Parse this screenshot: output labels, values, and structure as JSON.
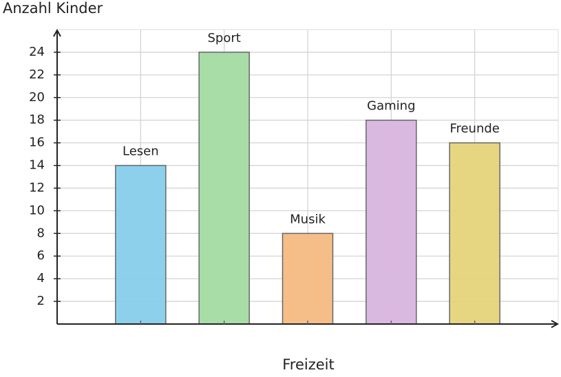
{
  "chart_data": {
    "type": "bar",
    "y_label": "Anzahl Kinder",
    "x_label": "Freizeit",
    "categories": [
      "Lesen",
      "Sport",
      "Musik",
      "Gaming",
      "Freunde"
    ],
    "values": [
      14,
      24,
      8,
      18,
      16
    ],
    "colors": [
      "#87ceeb",
      "#a3dba3",
      "#f4bb82",
      "#d8b5df",
      "#e5d47a"
    ],
    "ylim": [
      0,
      26
    ],
    "yticks": [
      2,
      4,
      6,
      8,
      10,
      12,
      14,
      16,
      18,
      20,
      22,
      24
    ],
    "grid": true
  }
}
